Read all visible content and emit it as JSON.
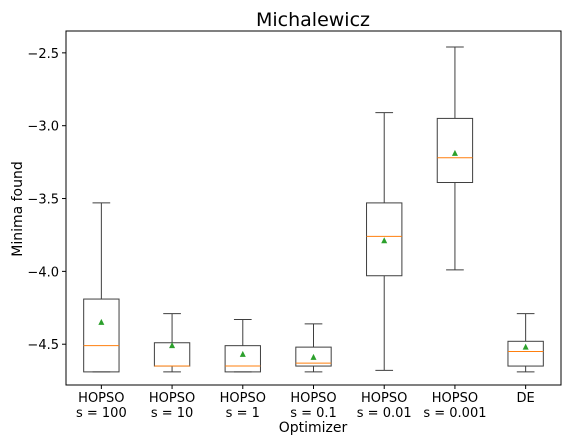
{
  "chart_data": {
    "type": "box",
    "title": "Michalewicz",
    "xlabel": "Optimizer",
    "ylabel": "Minima found",
    "ylim": [
      -4.78,
      -2.35
    ],
    "yticks": [
      -4.5,
      -4.0,
      -3.5,
      -3.0,
      -2.5
    ],
    "ytick_labels": [
      "−4.5",
      "−4.0",
      "−3.5",
      "−3.0",
      "−2.5"
    ],
    "categories": [
      {
        "line1": "HOPSO",
        "line2": "s = 100"
      },
      {
        "line1": "HOPSO",
        "line2": "s = 10"
      },
      {
        "line1": "HOPSO",
        "line2": "s = 1"
      },
      {
        "line1": "HOPSO",
        "line2": "s = 0.1"
      },
      {
        "line1": "HOPSO",
        "line2": "s = 0.01"
      },
      {
        "line1": "HOPSO",
        "line2": "s = 0.001"
      },
      {
        "line1": "DE",
        "line2": ""
      }
    ],
    "boxes": [
      {
        "whisker_low": -4.69,
        "q1": -4.69,
        "median": -4.51,
        "q3": -4.19,
        "whisker_high": -3.53,
        "mean": -4.35
      },
      {
        "whisker_low": -4.69,
        "q1": -4.65,
        "median": -4.65,
        "q3": -4.49,
        "whisker_high": -4.29,
        "mean": -4.51
      },
      {
        "whisker_low": -4.69,
        "q1": -4.69,
        "median": -4.65,
        "q3": -4.51,
        "whisker_high": -4.33,
        "mean": -4.57
      },
      {
        "whisker_low": -4.69,
        "q1": -4.65,
        "median": -4.63,
        "q3": -4.52,
        "whisker_high": -4.36,
        "mean": -4.59
      },
      {
        "whisker_low": -4.68,
        "q1": -4.03,
        "median": -3.76,
        "q3": -3.53,
        "whisker_high": -2.91,
        "mean": -3.79
      },
      {
        "whisker_low": -3.99,
        "q1": -3.39,
        "median": -3.22,
        "q3": -2.95,
        "whisker_high": -2.46,
        "mean": -3.19
      },
      {
        "whisker_low": -4.69,
        "q1": -4.65,
        "median": -4.55,
        "q3": -4.48,
        "whisker_high": -4.29,
        "mean": -4.52
      }
    ],
    "colors": {
      "box": "#3f3f3f",
      "median": "#ff7f0e",
      "mean": "#2ca02c",
      "axis": "#000000"
    },
    "grid": false,
    "legend": "none"
  }
}
